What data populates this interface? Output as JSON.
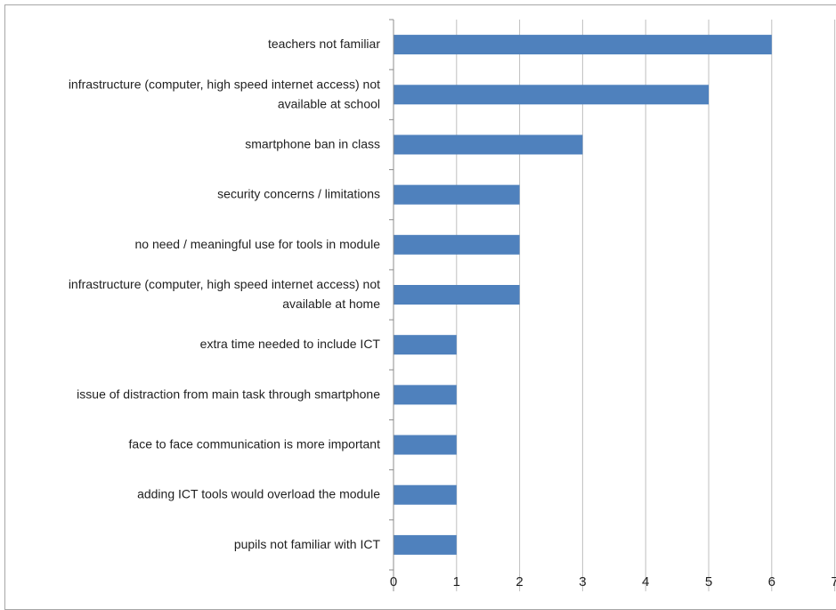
{
  "chart_data": {
    "type": "bar",
    "orientation": "horizontal",
    "title": "",
    "xlabel": "",
    "ylabel": "",
    "xlim": [
      0,
      7
    ],
    "xticks": [
      0,
      1,
      2,
      3,
      4,
      5,
      6,
      7
    ],
    "grid": "vertical",
    "legend": "none",
    "bar_color": "#4f81bd",
    "gridline_color": "#bfbfbf",
    "categories": [
      "teachers not familiar",
      "infrastructure (computer, high speed internet access) not available at school",
      "smartphone ban in class",
      "security concerns / limitations",
      "no need / meaningful use for tools in module",
      "infrastructure (computer, high speed internet access) not available at home",
      "extra time needed to include ICT",
      "issue of distraction from main task through smartphone",
      "face to face communication is more important",
      "adding ICT tools would overload the module",
      "pupils not familiar with ICT"
    ],
    "category_lines": [
      [
        "teachers not familiar"
      ],
      [
        "infrastructure (computer, high speed internet access) not",
        "available at school"
      ],
      [
        "smartphone ban in class"
      ],
      [
        "security concerns / limitations"
      ],
      [
        "no need / meaningful use for tools in module"
      ],
      [
        "infrastructure (computer, high speed internet access) not",
        "available at home"
      ],
      [
        "extra time needed to include ICT"
      ],
      [
        "issue of distraction from main task through smartphone"
      ],
      [
        "face to face communication is more important"
      ],
      [
        "adding ICT tools would overload the module"
      ],
      [
        "pupils not familiar with ICT"
      ]
    ],
    "values": [
      6,
      5,
      3,
      2,
      2,
      2,
      1,
      1,
      1,
      1,
      1
    ]
  }
}
